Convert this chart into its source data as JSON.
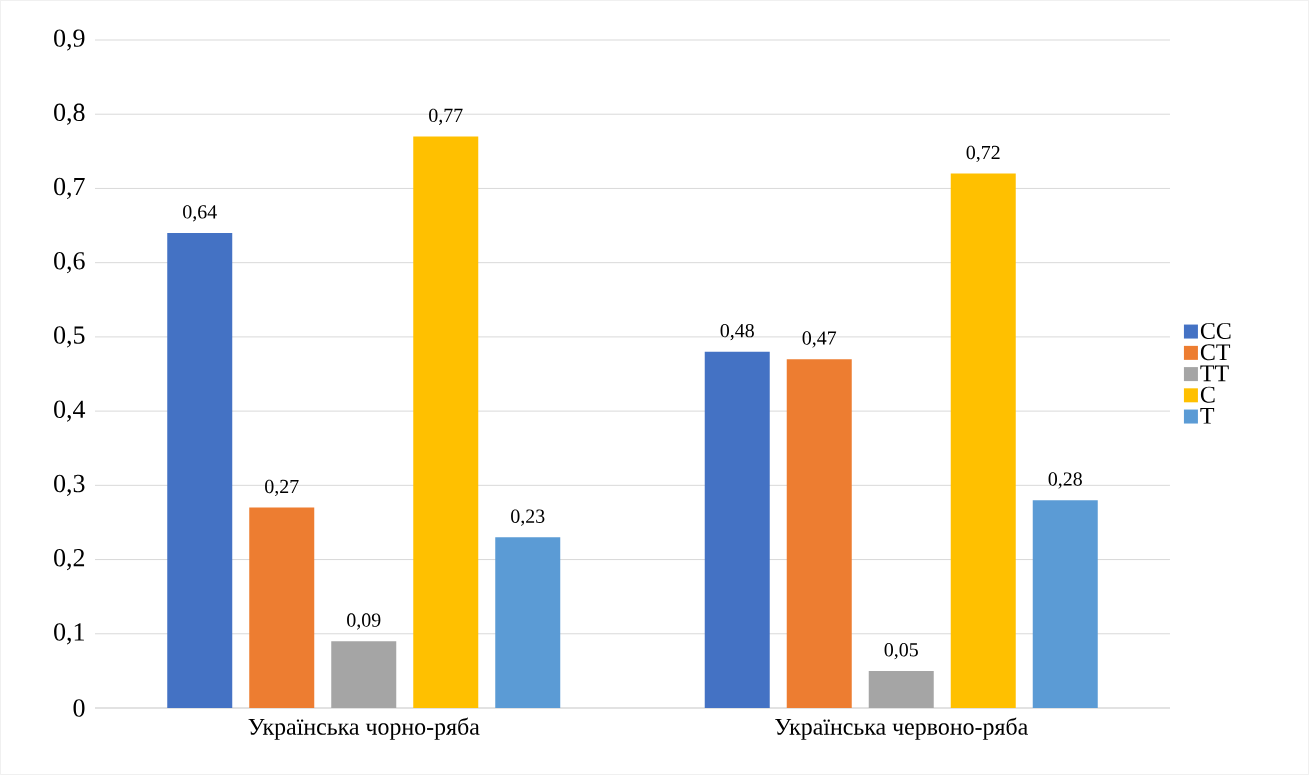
{
  "chart_data": {
    "type": "bar",
    "categories": [
      "Українська чорно-ряба",
      "Українська червоно-ряба"
    ],
    "series": [
      {
        "name": "CC",
        "color": "#4472c4",
        "values": [
          0.64,
          0.48
        ],
        "value_labels": [
          "0,64",
          "0,48"
        ]
      },
      {
        "name": "CT",
        "color": "#ed7d31",
        "values": [
          0.27,
          0.47
        ],
        "value_labels": [
          "0,27",
          "0,47"
        ]
      },
      {
        "name": "TT",
        "color": "#a5a5a5",
        "values": [
          0.09,
          0.05
        ],
        "value_labels": [
          "0,09",
          "0,05"
        ]
      },
      {
        "name": "C",
        "color": "#ffc000",
        "values": [
          0.77,
          0.72
        ],
        "value_labels": [
          "0,77",
          "0,72"
        ]
      },
      {
        "name": "T",
        "color": "#5b9bd5",
        "values": [
          0.23,
          0.28
        ],
        "value_labels": [
          "0,23",
          "0,28"
        ]
      }
    ],
    "ylim": [
      0,
      0.9
    ],
    "yticks": [
      {
        "value": 0,
        "label": "0"
      },
      {
        "value": 0.1,
        "label": "0,1"
      },
      {
        "value": 0.2,
        "label": "0,2"
      },
      {
        "value": 0.3,
        "label": "0,3"
      },
      {
        "value": 0.4,
        "label": "0,4"
      },
      {
        "value": 0.5,
        "label": "0,5"
      },
      {
        "value": 0.6,
        "label": "0,6"
      },
      {
        "value": 0.7,
        "label": "0,7"
      },
      {
        "value": 0.8,
        "label": "0,8"
      },
      {
        "value": 0.9,
        "label": "0,9"
      }
    ],
    "grid": "y",
    "legend": "right"
  }
}
